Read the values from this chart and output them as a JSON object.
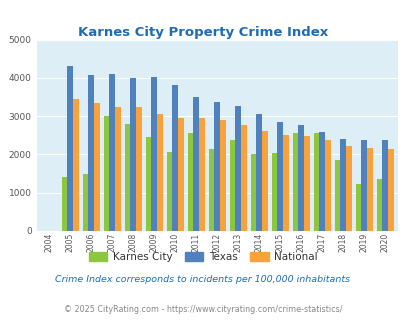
{
  "title": "Karnes City Property Crime Index",
  "years": [
    "2004",
    "2005",
    "2006",
    "2007",
    "2008",
    "2009",
    "2010",
    "2011",
    "2012",
    "2013",
    "2014",
    "2015",
    "2016",
    "2017",
    "2018",
    "2019",
    "2020"
  ],
  "karnes_city": [
    0,
    1400,
    1500,
    3000,
    2800,
    2450,
    2070,
    2560,
    2140,
    2380,
    2010,
    2030,
    2560,
    2560,
    1850,
    1220,
    1360
  ],
  "texas": [
    0,
    4300,
    4070,
    4100,
    4000,
    4020,
    3810,
    3500,
    3380,
    3270,
    3060,
    2860,
    2780,
    2590,
    2400,
    2380,
    2380
  ],
  "national": [
    0,
    3440,
    3340,
    3240,
    3230,
    3060,
    2960,
    2960,
    2890,
    2780,
    2620,
    2510,
    2470,
    2390,
    2210,
    2160,
    2140
  ],
  "colors": {
    "karnes_city": "#8dc63f",
    "texas": "#4f81bd",
    "national": "#f9a13a"
  },
  "ylim": [
    0,
    5000
  ],
  "yticks": [
    0,
    1000,
    2000,
    3000,
    4000,
    5000
  ],
  "bg_color": "#ddeef6",
  "title_color": "#1f6cb0",
  "legend_text_color": "#333333",
  "subtitle": "Crime Index corresponds to incidents per 100,000 inhabitants",
  "footer": "© 2025 CityRating.com - https://www.cityrating.com/crime-statistics/",
  "subtitle_color": "#1f6cb0",
  "footer_color": "#888888",
  "footer_link_color": "#0070c0"
}
